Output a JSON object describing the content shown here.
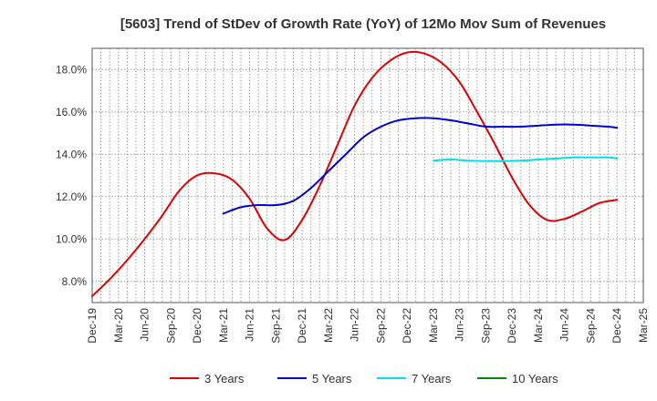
{
  "chart_data": {
    "type": "line",
    "title": "[5603]  Trend of StDev of Growth Rate (YoY) of 12Mo Mov Sum of Revenues",
    "xlabel": "",
    "ylabel": "",
    "ylim": [
      7.0,
      19.0
    ],
    "y_ticks": [
      8.0,
      10.0,
      12.0,
      14.0,
      16.0,
      18.0
    ],
    "y_tick_labels": [
      "8.0%",
      "10.0%",
      "12.0%",
      "14.0%",
      "16.0%",
      "18.0%"
    ],
    "x_tick_labels": [
      "Dec-19",
      "Mar-20",
      "Jun-20",
      "Sep-20",
      "Dec-20",
      "Mar-21",
      "Jun-21",
      "Sep-21",
      "Dec-21",
      "Mar-22",
      "Jun-22",
      "Sep-22",
      "Dec-22",
      "Mar-23",
      "Jun-23",
      "Sep-23",
      "Dec-23",
      "Mar-24",
      "Jun-24",
      "Sep-24",
      "Dec-24",
      "Mar-25"
    ],
    "x_range_months": [
      0,
      63
    ],
    "grid": true,
    "legend_position": "bottom",
    "series": [
      {
        "name": "3 Years",
        "color": "#dd0000",
        "points": [
          [
            0,
            7.3
          ],
          [
            2,
            8.1
          ],
          [
            4,
            9.0
          ],
          [
            6,
            10.0
          ],
          [
            8,
            11.1
          ],
          [
            10,
            12.3
          ],
          [
            12,
            13.0
          ],
          [
            14,
            13.1
          ],
          [
            16,
            12.8
          ],
          [
            18,
            11.9
          ],
          [
            20,
            10.5
          ],
          [
            22,
            9.95
          ],
          [
            24,
            10.9
          ],
          [
            26,
            12.5
          ],
          [
            28,
            14.4
          ],
          [
            30,
            16.3
          ],
          [
            32,
            17.6
          ],
          [
            34,
            18.4
          ],
          [
            36,
            18.8
          ],
          [
            38,
            18.75
          ],
          [
            40,
            18.3
          ],
          [
            42,
            17.4
          ],
          [
            44,
            16.0
          ],
          [
            46,
            14.5
          ],
          [
            48,
            12.9
          ],
          [
            50,
            11.6
          ],
          [
            52,
            10.9
          ],
          [
            54,
            10.95
          ],
          [
            56,
            11.3
          ],
          [
            58,
            11.7
          ],
          [
            60,
            11.85
          ]
        ]
      },
      {
        "name": "5 Years",
        "color": "#0000cc",
        "points": [
          [
            15,
            11.2
          ],
          [
            17,
            11.5
          ],
          [
            19,
            11.6
          ],
          [
            21,
            11.6
          ],
          [
            23,
            11.8
          ],
          [
            25,
            12.4
          ],
          [
            27,
            13.2
          ],
          [
            29,
            14.0
          ],
          [
            31,
            14.8
          ],
          [
            33,
            15.3
          ],
          [
            35,
            15.6
          ],
          [
            37,
            15.7
          ],
          [
            39,
            15.7
          ],
          [
            41,
            15.6
          ],
          [
            43,
            15.45
          ],
          [
            45,
            15.3
          ],
          [
            47,
            15.3
          ],
          [
            49,
            15.3
          ],
          [
            51,
            15.35
          ],
          [
            53,
            15.4
          ],
          [
            55,
            15.4
          ],
          [
            57,
            15.35
          ],
          [
            59,
            15.3
          ],
          [
            60,
            15.25
          ]
        ]
      },
      {
        "name": "7 Years",
        "color": "#00e0e0",
        "points": [
          [
            39,
            13.7
          ],
          [
            41,
            13.75
          ],
          [
            43,
            13.7
          ],
          [
            45,
            13.68
          ],
          [
            47,
            13.68
          ],
          [
            49,
            13.7
          ],
          [
            51,
            13.75
          ],
          [
            53,
            13.8
          ],
          [
            55,
            13.85
          ],
          [
            57,
            13.85
          ],
          [
            59,
            13.85
          ],
          [
            60,
            13.8
          ]
        ]
      },
      {
        "name": "10 Years",
        "color": "#008800",
        "points": []
      }
    ]
  }
}
